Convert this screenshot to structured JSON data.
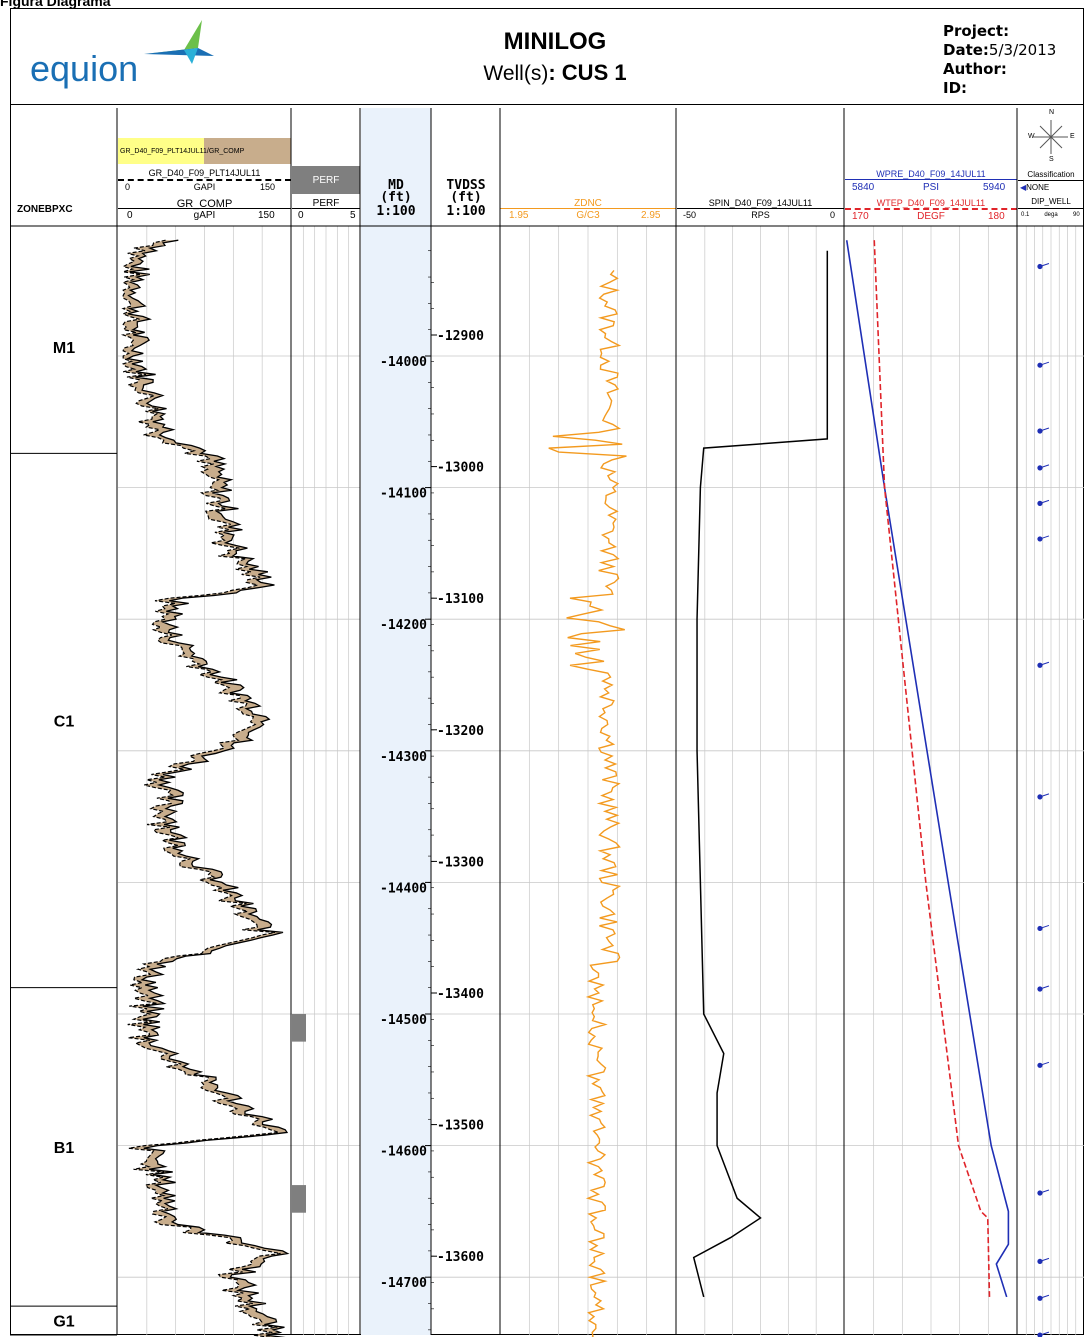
{
  "header": {
    "partial_top_text": "Figura Diagrama",
    "logo_text": "equion",
    "title": "MINILOG",
    "well_label": "Well(s)",
    "well_name": "CUS 1",
    "project_label": "Project",
    "date_label": "Date",
    "date_value": "5/3/2013",
    "author_label": "Author",
    "id_label": "ID"
  },
  "tracks": {
    "zone": {
      "header": "ZONEBPXC"
    },
    "gr": {
      "fill_label": "GR_D40_F09_PLT14JUL11/GR_COMP",
      "curve1_name": "GR_D40_F09_PLT14JUL11",
      "curve1_min": "0",
      "curve1_unit": "GAPI",
      "curve1_max": "150",
      "curve2_name": "GR_COMP",
      "curve2_min": "0",
      "curve2_unit": "gAPI",
      "curve2_max": "150"
    },
    "perf": {
      "box_label": "PERF",
      "name": "PERF",
      "min": "0",
      "max": "5"
    },
    "md": {
      "label": "MD",
      "unit": "(ft)",
      "scale": "1:100"
    },
    "tvdss": {
      "label": "TVDSS",
      "unit": "(ft)",
      "scale": "1:100"
    },
    "zdnc": {
      "name": "ZDNC",
      "min": "1.95",
      "unit": "G/C3",
      "max": "2.95"
    },
    "spin": {
      "name": "SPIN_D40_F09_14JUL11",
      "min": "-50",
      "unit": "RPS",
      "max": "0"
    },
    "wpre": {
      "name": "WPRE_D40_F09_14JUL11",
      "min": "5840",
      "unit": "PSI",
      "max": "5940"
    },
    "wtep": {
      "name": "WTEP_D40_F09_14JUL11",
      "min": "170",
      "unit": "DEGF",
      "max": "180"
    },
    "dip": {
      "compass_n": "N",
      "compass_s": "S",
      "compass_w": "W",
      "compass_e": "E",
      "classification": "Classification",
      "class_item": "NONE",
      "name": "DIP_WELL",
      "min": "0.1",
      "unit": "dega",
      "max": "90"
    }
  },
  "colors": {
    "gr_fill_high": "#c8ad8c",
    "gr_fill_low": "#ffff88",
    "zdnc": "#f39a1f",
    "wpre": "#1f2fb5",
    "wtep": "#e0242a",
    "md_track_bg": "#eaf2fb",
    "perf_box": "#7f7f7f"
  },
  "chart_data": {
    "type": "line",
    "depth_axis_md": {
      "unit": "ft",
      "ticks": [
        14000,
        14100,
        14200,
        14300,
        14400,
        14500,
        14600,
        14700
      ],
      "range": [
        13912,
        14749
      ]
    },
    "depth_axis_tvdss": {
      "unit": "ft",
      "ticks": [
        -12900,
        -13000,
        -13100,
        -13200,
        -13300,
        -13400,
        -13500,
        -13600
      ]
    },
    "zones": [
      {
        "name": "M1",
        "top_md": 13912,
        "base_md": 14074
      },
      {
        "name": "C1",
        "top_md": 14074,
        "base_md": 14480
      },
      {
        "name": "B1",
        "top_md": 14480,
        "base_md": 14722
      },
      {
        "name": "G1",
        "top_md": 14722,
        "base_md": 14749
      }
    ],
    "perforations": [
      {
        "top_md": 14500,
        "base_md": 14521
      },
      {
        "top_md": 14630,
        "base_md": 14651
      }
    ],
    "spin": {
      "name": "SPIN_D40_F09_14JUL11",
      "xlim": [
        -50,
        0
      ],
      "md": [
        13920,
        14060,
        14063,
        14070,
        14100,
        14200,
        14300,
        14400,
        14500,
        14530,
        14560,
        14600,
        14640,
        14655,
        14670,
        14685,
        14715
      ],
      "values": [
        -5,
        -5,
        -5,
        -42,
        -43,
        -44,
        -44,
        -43,
        -42,
        -36,
        -38,
        -38,
        -32,
        -25,
        -34,
        -45,
        -42
      ]
    },
    "wpre": {
      "name": "WPRE_D40_F09_14JUL11",
      "xlim": [
        5840,
        5940
      ],
      "md": [
        13912,
        14100,
        14400,
        14600,
        14650,
        14675,
        14690,
        14715
      ],
      "values": [
        5841,
        5863,
        5900,
        5925,
        5935,
        5935,
        5928,
        5934
      ]
    },
    "wtep": {
      "name": "WTEP_D40_F09_14JUL11",
      "xlim": [
        170,
        180
      ],
      "md": [
        13912,
        14100,
        14400,
        14600,
        14650,
        14655,
        14715
      ],
      "values": [
        171.7,
        172.3,
        174.7,
        176.6,
        177.9,
        178.3,
        178.4
      ]
    },
    "dip": {
      "name": "DIP_WELL",
      "xlim": [
        0.1,
        90
      ],
      "md": [
        13932,
        14007,
        14057,
        14085,
        14112,
        14139,
        14235,
        14335,
        14435,
        14481,
        14539,
        14636,
        14688,
        14716,
        14744
      ],
      "values": [
        30,
        30,
        30,
        30,
        30,
        30,
        30,
        30,
        30,
        30,
        30,
        30,
        30,
        30,
        30
      ]
    }
  }
}
